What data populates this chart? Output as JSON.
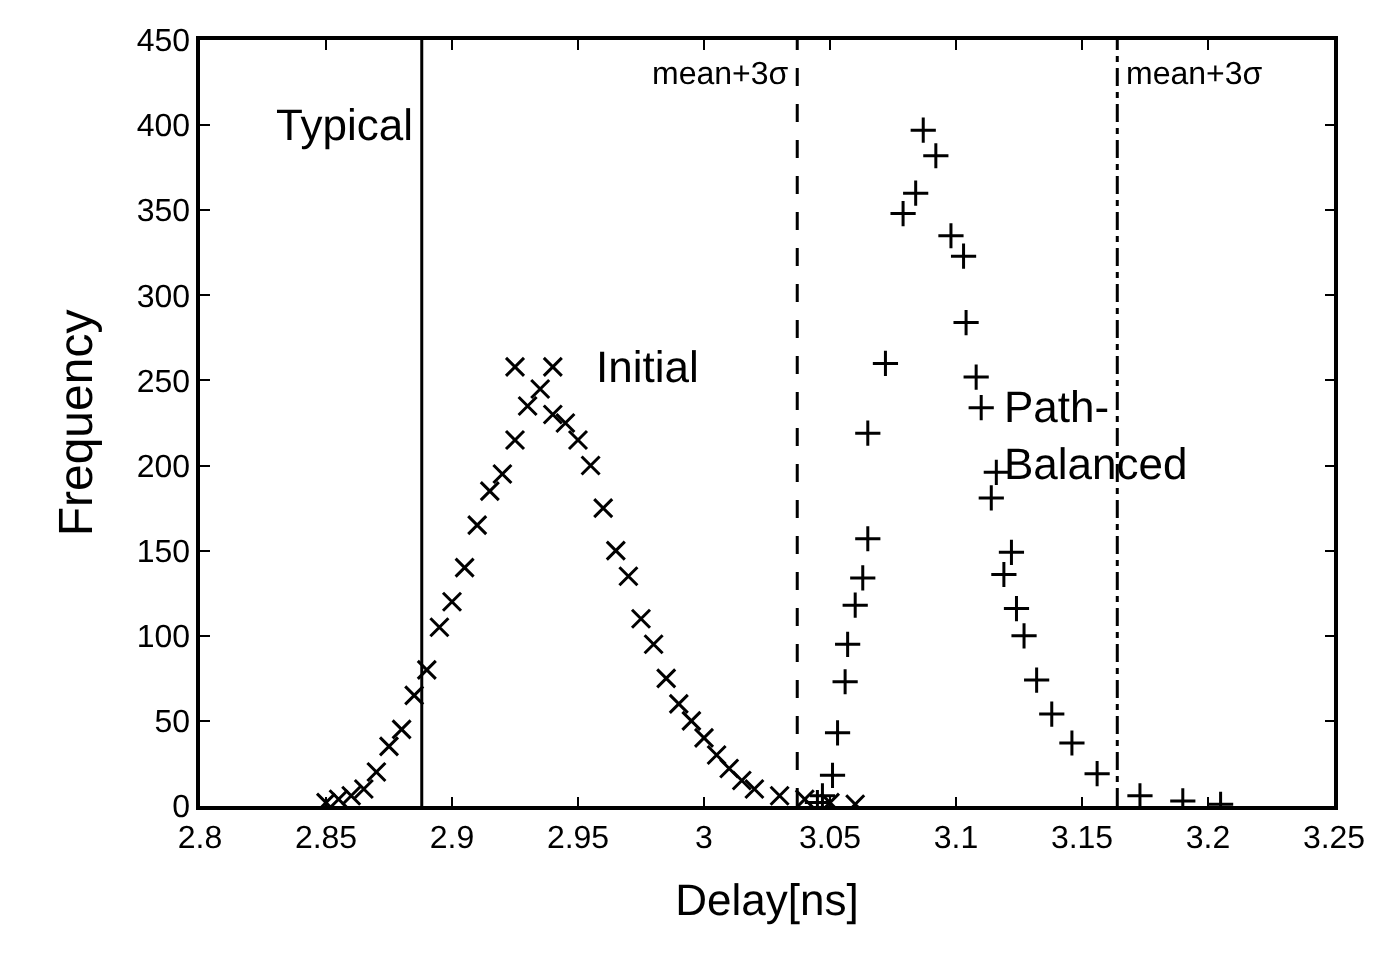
{
  "chart_data": {
    "type": "scatter",
    "xlabel": "Delay[ns]",
    "ylabel": "Frequency",
    "xlim": [
      2.8,
      3.25
    ],
    "xticks": [
      2.8,
      2.85,
      2.9,
      2.95,
      3,
      3.05,
      3.1,
      3.15,
      3.2,
      3.25
    ],
    "ylim": [
      0,
      450
    ],
    "yticks": [
      0,
      50,
      100,
      150,
      200,
      250,
      300,
      350,
      400,
      450
    ],
    "legend": false,
    "series": [
      {
        "name": "Initial",
        "color": "#000000",
        "marker": "x",
        "x": [
          2.85,
          2.855,
          2.86,
          2.865,
          2.87,
          2.875,
          2.88,
          2.885,
          2.89,
          2.895,
          2.9,
          2.905,
          2.91,
          2.915,
          2.92,
          2.925,
          2.925,
          2.93,
          2.935,
          2.94,
          2.94,
          2.945,
          2.95,
          2.955,
          2.96,
          2.965,
          2.97,
          2.975,
          2.98,
          2.985,
          2.99,
          2.995,
          3.0,
          3.005,
          3.01,
          3.015,
          3.02,
          3.03,
          3.04,
          3.05,
          3.06
        ],
        "values": [
          2,
          4,
          6,
          10,
          20,
          35,
          45,
          65,
          80,
          105,
          120,
          140,
          165,
          185,
          195,
          215,
          258,
          235,
          245,
          230,
          258,
          225,
          215,
          200,
          175,
          150,
          135,
          110,
          95,
          75,
          60,
          50,
          40,
          30,
          22,
          15,
          10,
          6,
          4,
          2,
          1
        ]
      },
      {
        "name": "Path-\nBalanced",
        "color": "#000000",
        "marker": "cross",
        "x": [
          3.045,
          3.047,
          3.051,
          3.053,
          3.056,
          3.057,
          3.06,
          3.063,
          3.065,
          3.065,
          3.072,
          3.079,
          3.084,
          3.087,
          3.092,
          3.098,
          3.103,
          3.104,
          3.108,
          3.11,
          3.114,
          3.116,
          3.119,
          3.122,
          3.124,
          3.127,
          3.132,
          3.138,
          3.146,
          3.156,
          3.173,
          3.19,
          3.205
        ],
        "values": [
          2,
          6,
          18,
          43,
          73,
          95,
          118,
          134,
          157,
          219,
          260,
          348,
          360,
          397,
          382,
          335,
          323,
          284,
          252,
          234,
          181,
          196,
          136,
          149,
          116,
          100,
          74,
          54,
          37,
          19,
          6,
          3,
          1
        ]
      }
    ],
    "ref_lines": [
      {
        "axis": "x",
        "value": 2.888,
        "label": "Typical",
        "line_style": "solid"
      },
      {
        "axis": "x",
        "value": 3.037,
        "label": "mean+3σ",
        "line_style": "dashed"
      },
      {
        "axis": "x",
        "value": 3.164,
        "label": "mean+3σ",
        "line_style": "dashdot"
      }
    ]
  }
}
